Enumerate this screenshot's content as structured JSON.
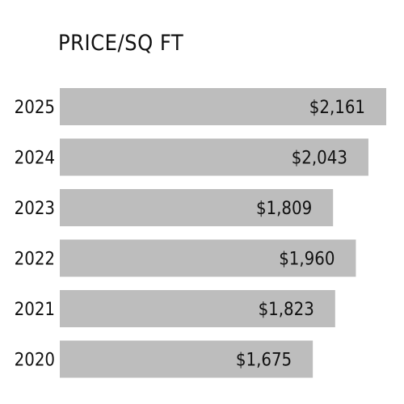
{
  "chart_data": {
    "type": "bar",
    "orientation": "horizontal",
    "title": "PRICE/SQ FT",
    "categories": [
      "2025",
      "2024",
      "2023",
      "2022",
      "2021",
      "2020"
    ],
    "values": [
      2161,
      2043,
      1809,
      1960,
      1823,
      1675
    ],
    "value_labels": [
      "$2,161",
      "$2,043",
      "$1,809",
      "$1,960",
      "$1,823",
      "$1,675"
    ],
    "bar_color": "#bdbdbd",
    "grid": false,
    "legend": "none"
  }
}
